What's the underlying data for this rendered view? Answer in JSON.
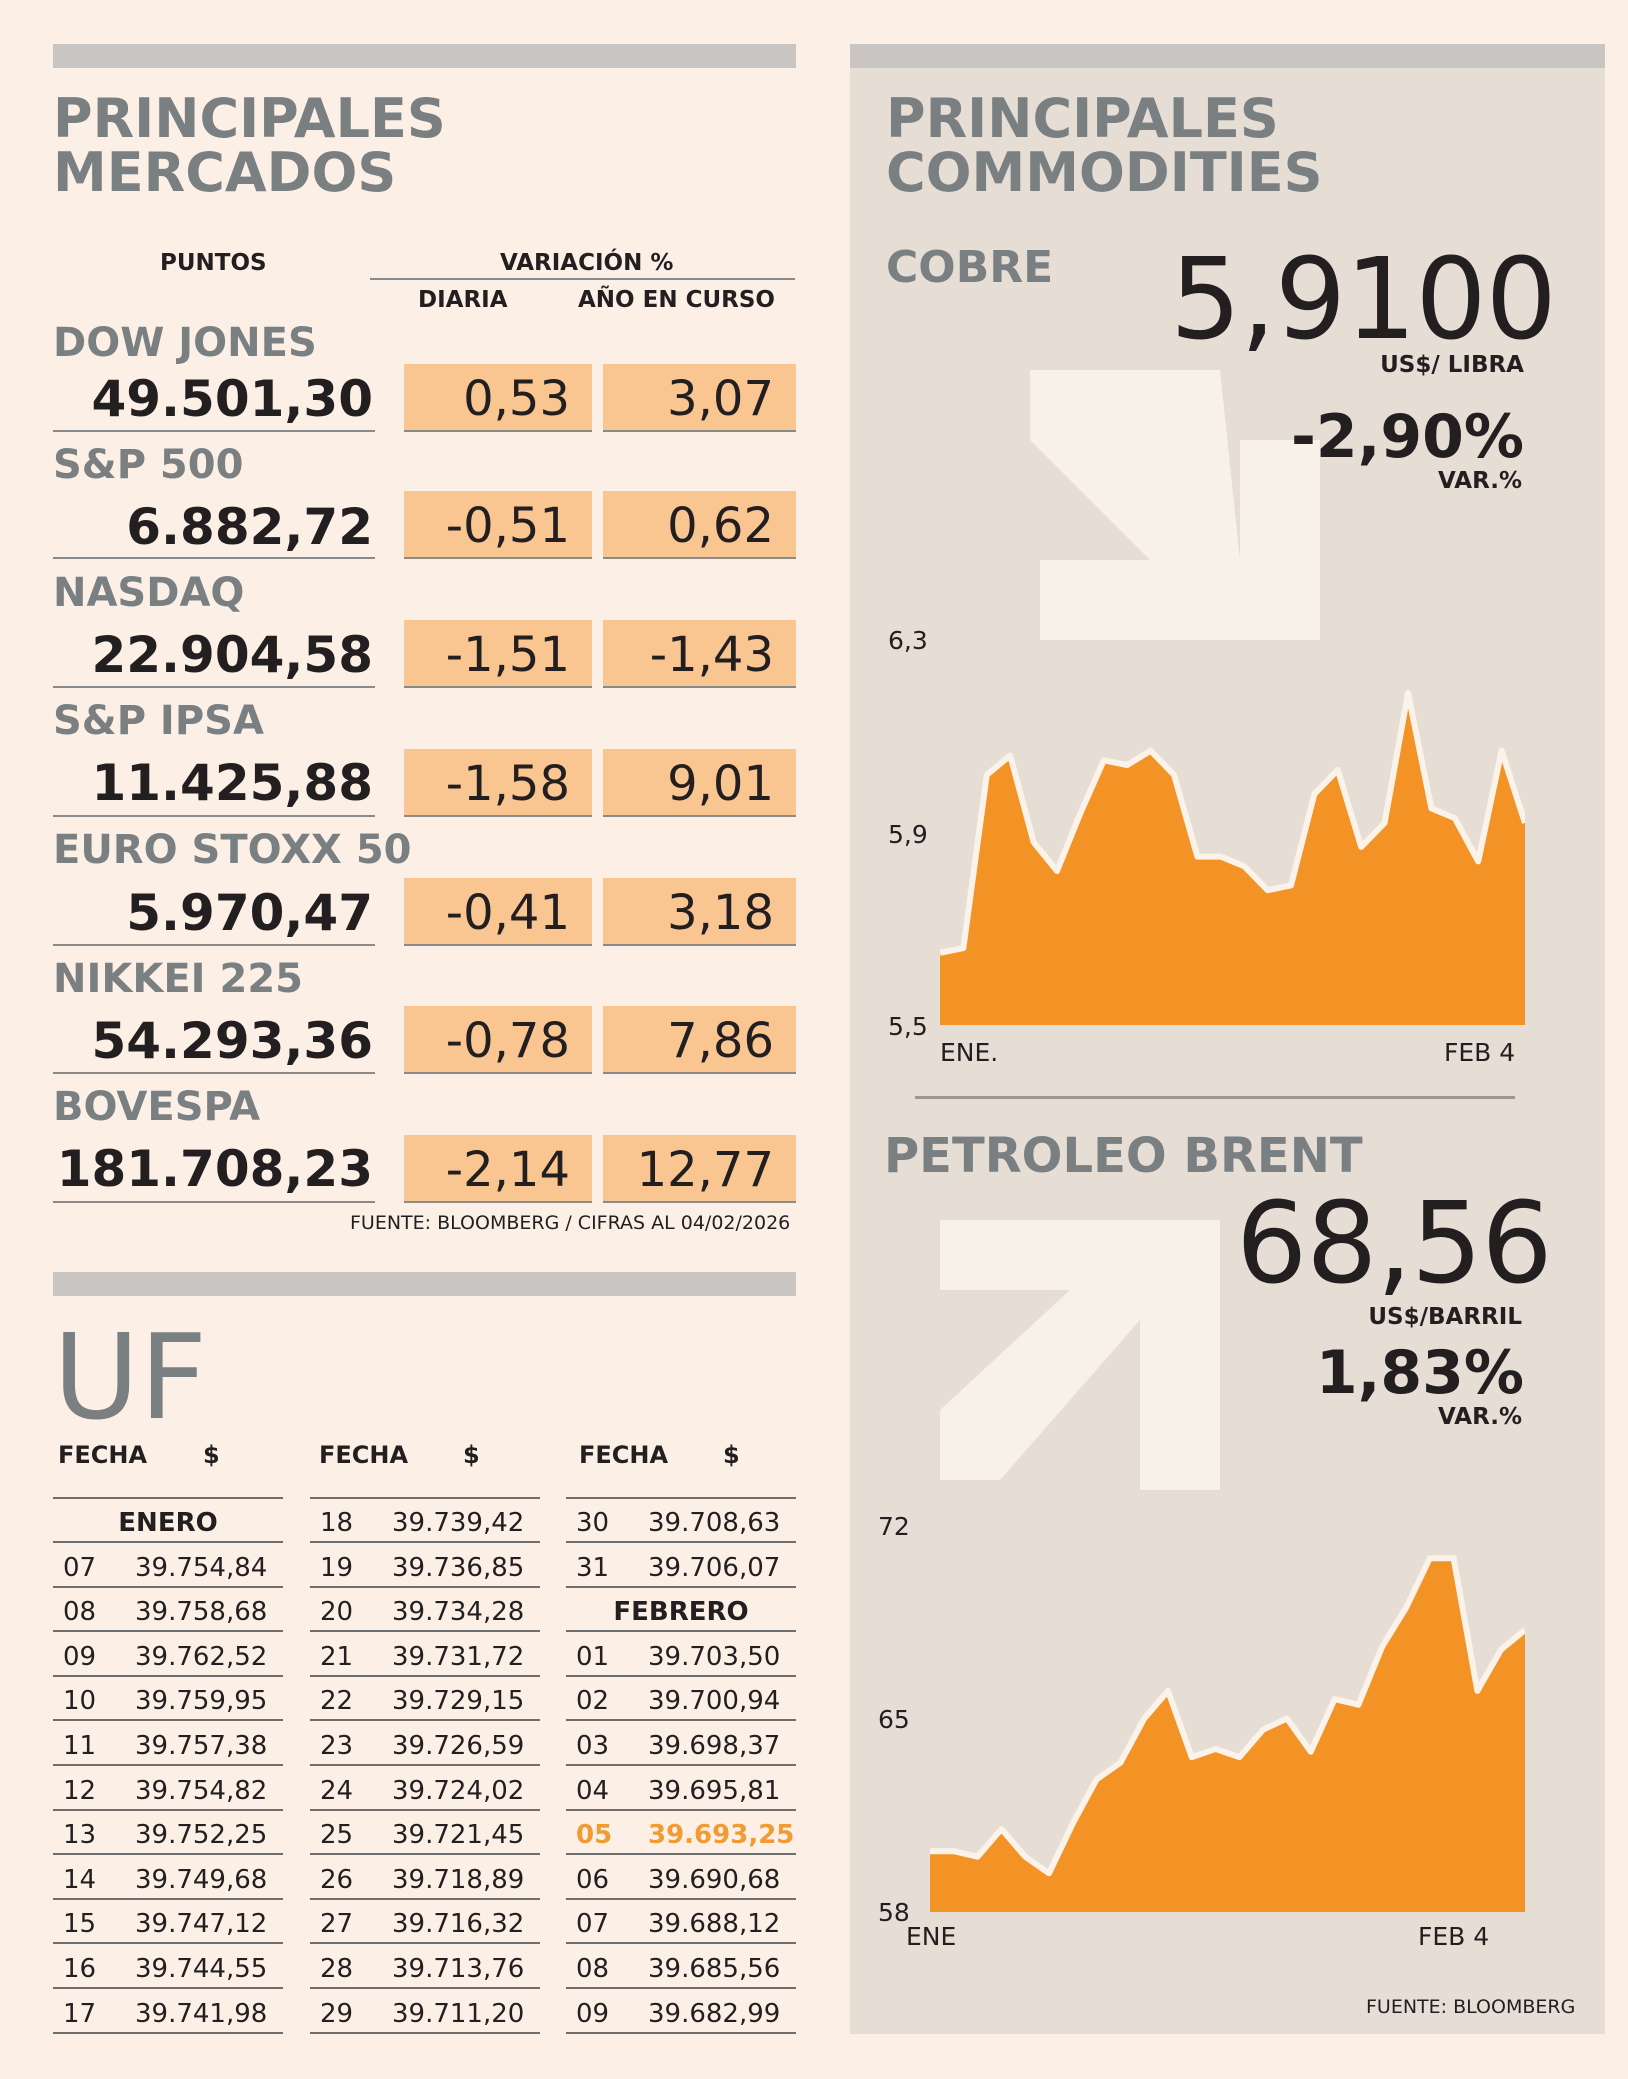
{
  "markets": {
    "title_line1": "PRINCIPALES",
    "title_line2": "MERCADOS",
    "header_points": "PUNTOS",
    "header_variation": "VARIACIÓN %",
    "header_daily": "DIARIA",
    "header_ytd": "AÑO EN CURSO",
    "rows": [
      {
        "name": "DOW JONES",
        "points": "49.501,30",
        "daily": "0,53",
        "ytd": "3,07"
      },
      {
        "name": "S&P 500",
        "points": "6.882,72",
        "daily": "-0,51",
        "ytd": "0,62"
      },
      {
        "name": "NASDAQ",
        "points": "22.904,58",
        "daily": "-1,51",
        "ytd": "-1,43"
      },
      {
        "name": "S&P IPSA",
        "points": "11.425,88",
        "daily": "-1,58",
        "ytd": "9,01"
      },
      {
        "name": "EURO STOXX 50",
        "points": "5.970,47",
        "daily": "-0,41",
        "ytd": "3,18"
      },
      {
        "name": "NIKKEI 225",
        "points": "54.293,36",
        "daily": "-0,78",
        "ytd": "7,86"
      },
      {
        "name": "BOVESPA",
        "points": "181.708,23",
        "daily": "-2,14",
        "ytd": "12,77"
      }
    ],
    "source": "FUENTE: BLOOMBERG  / CIFRAS AL 04/02/2026"
  },
  "uf": {
    "title": "UF",
    "col_date": "FECHA",
    "col_value": "$",
    "columns": [
      [
        {
          "month": "ENERO"
        },
        {
          "day": "07",
          "value": "39.754,84"
        },
        {
          "day": "08",
          "value": "39.758,68"
        },
        {
          "day": "09",
          "value": "39.762,52"
        },
        {
          "day": "10",
          "value": "39.759,95"
        },
        {
          "day": "11",
          "value": "39.757,38"
        },
        {
          "day": "12",
          "value": "39.754,82"
        },
        {
          "day": "13",
          "value": "39.752,25"
        },
        {
          "day": "14",
          "value": "39.749,68"
        },
        {
          "day": "15",
          "value": "39.747,12"
        },
        {
          "day": "16",
          "value": "39.744,55"
        },
        {
          "day": "17",
          "value": "39.741,98"
        }
      ],
      [
        {
          "day": "18",
          "value": "39.739,42"
        },
        {
          "day": "19",
          "value": "39.736,85"
        },
        {
          "day": "20",
          "value": "39.734,28"
        },
        {
          "day": "21",
          "value": "39.731,72"
        },
        {
          "day": "22",
          "value": "39.729,15"
        },
        {
          "day": "23",
          "value": "39.726,59"
        },
        {
          "day": "24",
          "value": "39.724,02"
        },
        {
          "day": "25",
          "value": "39.721,45"
        },
        {
          "day": "26",
          "value": "39.718,89"
        },
        {
          "day": "27",
          "value": "39.716,32"
        },
        {
          "day": "28",
          "value": "39.713,76"
        },
        {
          "day": "29",
          "value": "39.711,20"
        }
      ],
      [
        {
          "day": "30",
          "value": "39.708,63"
        },
        {
          "day": "31",
          "value": "39.706,07"
        },
        {
          "month": "FEBRERO"
        },
        {
          "day": "01",
          "value": "39.703,50"
        },
        {
          "day": "02",
          "value": "39.700,94"
        },
        {
          "day": "03",
          "value": "39.698,37"
        },
        {
          "day": "04",
          "value": "39.695,81"
        },
        {
          "day": "05",
          "value": "39.693,25",
          "highlight": true
        },
        {
          "day": "06",
          "value": "39.690,68"
        },
        {
          "day": "07",
          "value": "39.688,12"
        },
        {
          "day": "08",
          "value": "39.685,56"
        },
        {
          "day": "09",
          "value": "39.682,99"
        }
      ]
    ]
  },
  "commodities": {
    "title_line1": "PRINCIPALES",
    "title_line2": "COMMODITIES",
    "copper": {
      "name": "COBRE",
      "price": "5,9100",
      "unit": "US$/ LIBRA",
      "change": "-2,90%",
      "change_label": "VAR.%",
      "direction": "down"
    },
    "brent": {
      "name": "PETROLEO BRENT",
      "price": "68,56",
      "unit": "US$/BARRIL",
      "change": "1,83%",
      "change_label": "VAR.%",
      "direction": "up"
    },
    "source": "FUENTE: BLOOMBERG",
    "accent_color": "#f39325",
    "panel_color": "#e6ddd5"
  },
  "chart_data": [
    {
      "type": "area",
      "series": [
        {
          "values": [
            5.65,
            5.66,
            6.02,
            6.06,
            5.88,
            5.82,
            5.94,
            6.05,
            6.04,
            6.07,
            6.02,
            5.85,
            5.85,
            5.83,
            5.78,
            5.79,
            5.98,
            6.03,
            5.87,
            5.92,
            6.19,
            5.95,
            5.93,
            5.84,
            6.07,
            5.92
          ]
        }
      ],
      "x_start_label": "ENE.",
      "x_end_label": "FEB 4",
      "yticks": [
        "6,3",
        "5,9",
        "5,5"
      ],
      "ylim": [
        5.5,
        6.3
      ]
    },
    {
      "type": "area",
      "series": [
        {
          "values": [
            60.2,
            60.2,
            60.0,
            61.0,
            60.0,
            59.4,
            61.2,
            62.8,
            63.4,
            65.0,
            66.0,
            63.6,
            63.9,
            63.6,
            64.6,
            65.0,
            63.8,
            65.7,
            65.5,
            67.6,
            69.0,
            70.8,
            70.8,
            66.0,
            67.5,
            68.2
          ]
        }
      ],
      "x_start_label": "ENE",
      "x_end_label": "FEB 4",
      "yticks": [
        "72",
        "65",
        "58"
      ],
      "ylim": [
        58,
        72
      ]
    }
  ]
}
